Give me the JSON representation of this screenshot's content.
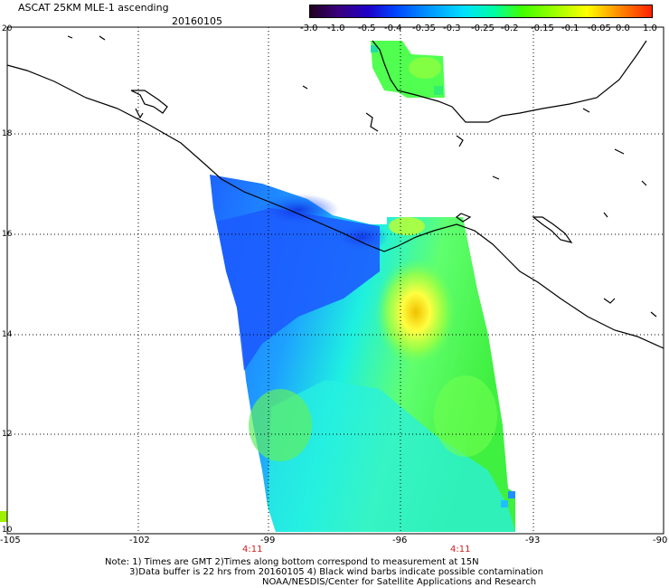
{
  "header": {
    "title": "ASCAT 25KM MLE-1 ascending",
    "date": "20160105"
  },
  "colorbar": {
    "ticks": [
      "-3.0",
      "-1.0",
      "-0.5",
      "-0.4",
      "-0.35",
      "-0.3",
      "-0.25",
      "-0.2",
      "-0.15",
      "-0.1",
      "-0.05",
      "0.0",
      "1.0"
    ],
    "colors": [
      "#200020",
      "#3a007a",
      "#2000c8",
      "#0044ff",
      "#0090ff",
      "#00e0ff",
      "#00ffa0",
      "#40ff00",
      "#a0ff00",
      "#ffff00",
      "#ff9000",
      "#ff2000"
    ]
  },
  "map": {
    "lat_labels": [
      "20",
      "18",
      "16",
      "14",
      "12",
      "10"
    ],
    "lon_labels": [
      "-105",
      "-102",
      "-99",
      "-96",
      "-93",
      "-90"
    ],
    "time_labels": [
      "4:11",
      "4:11"
    ],
    "colors": {
      "land_line": "#000000",
      "grid": "#000000",
      "time_label": "#d02020"
    }
  },
  "footer": {
    "note1": "Note: 1) Times are GMT 2)Times along bottom correspond to measurement at 15N",
    "note2": "3)Data buffer is 22 hrs from 20160105 4) Black wind barbs indicate possible contamination",
    "note3": "NOAA/NESDIS/Center for Satellite Applications and Research"
  }
}
